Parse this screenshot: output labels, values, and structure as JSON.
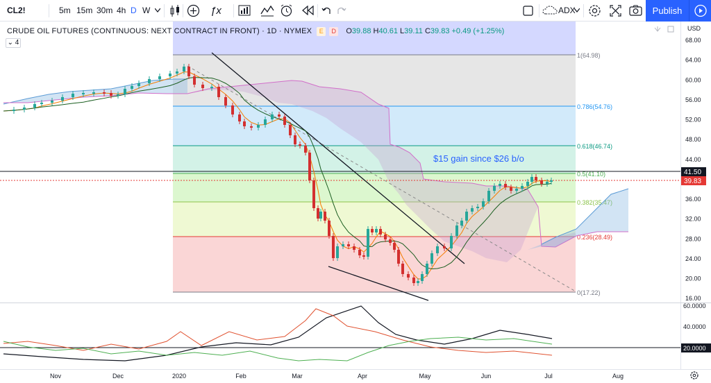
{
  "toolbar": {
    "symbol": "CL2!",
    "intervals": [
      "5m",
      "15m",
      "30m",
      "4h",
      "D",
      "W"
    ],
    "active_interval": "D",
    "indicator_name": "ADX",
    "publish_label": "Publish"
  },
  "legend": {
    "title": "CRUDE OIL FUTURES (CONTINUOUS: NEXT CONTRACT IN FRONT) · 1D · NYMEX",
    "o_label": "O",
    "o": "39.88",
    "h_label": "H",
    "h": "40.61",
    "l_label": "L",
    "l": "39.11",
    "c_label": "C",
    "c": "39.83",
    "change": "+0.49 (+1.25%)",
    "badge_e": "E",
    "badge_d": "D",
    "indicator_count": "4"
  },
  "price_axis": {
    "currency": "USD",
    "ticks": [
      "68.00",
      "64.00",
      "60.00",
      "56.00",
      "52.00",
      "48.00",
      "44.00",
      "40.00",
      "36.00",
      "32.00",
      "28.00",
      "24.00",
      "20.00",
      "16.00"
    ],
    "tag_black": "41.50",
    "tag_red": "39.83"
  },
  "adx_axis": {
    "ticks": [
      "60.0000",
      "40.0000",
      "20.0000"
    ]
  },
  "time_axis": {
    "ticks": [
      "Nov",
      "Dec",
      "2020",
      "Feb",
      "Mar",
      "Apr",
      "May",
      "Jun",
      "Jul",
      "Aug"
    ]
  },
  "fib_levels": [
    {
      "label": "1(64.98)",
      "color": "#787b86"
    },
    {
      "label": "0.786(54.76)",
      "color": "#2196f3"
    },
    {
      "label": "0.618(46.74)",
      "color": "#089981"
    },
    {
      "label": "0.5(41.10)",
      "color": "#4caf50"
    },
    {
      "label": "0.382(35.47)",
      "color": "#8bc34a"
    },
    {
      "label": "0.236(28.49)",
      "color": "#e53935"
    },
    {
      "label": "0(17.22)",
      "color": "#787b86"
    }
  ],
  "annotation": "$15 gain since $26 b/o",
  "colors": {
    "up": "#26a69a",
    "down": "#d32f2f",
    "accent": "#2962ff",
    "cloud_green": "#7fb3e0",
    "cloud_pink": "#e38bd9"
  }
}
